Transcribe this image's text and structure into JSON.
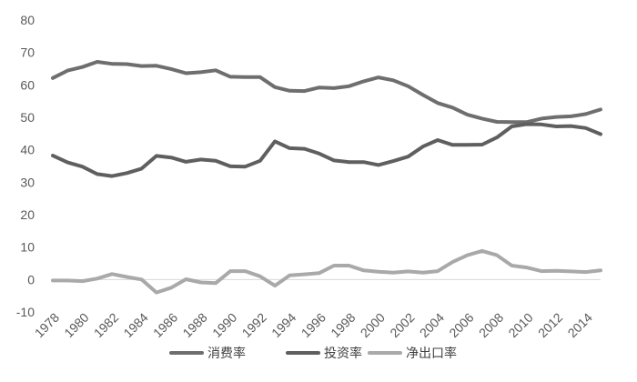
{
  "chart_data": {
    "type": "line",
    "title": "",
    "xlabel": "",
    "ylabel": "",
    "ylim": [
      -10,
      80
    ],
    "yticks": [
      -10,
      0,
      10,
      20,
      30,
      40,
      50,
      60,
      70,
      80
    ],
    "xlim": [
      1978,
      2015
    ],
    "xticks": [
      1978,
      1980,
      1982,
      1984,
      1986,
      1988,
      1990,
      1992,
      1994,
      1996,
      1998,
      2000,
      2002,
      2004,
      2006,
      2008,
      2010,
      2012,
      2014
    ],
    "grid": false,
    "legend_position": "bottom",
    "x": [
      1978,
      1979,
      1980,
      1981,
      1982,
      1983,
      1984,
      1985,
      1986,
      1987,
      1988,
      1989,
      1990,
      1991,
      1992,
      1993,
      1994,
      1995,
      1996,
      1997,
      1998,
      1999,
      2000,
      2001,
      2002,
      2003,
      2004,
      2005,
      2006,
      2007,
      2008,
      2009,
      2010,
      2011,
      2012,
      2013,
      2014,
      2015
    ],
    "series": [
      {
        "name": "消费率",
        "color": "#6e6e6e",
        "values": [
          62.1,
          64.4,
          65.5,
          67.1,
          66.5,
          66.4,
          65.8,
          65.9,
          64.9,
          63.6,
          63.9,
          64.5,
          62.5,
          62.4,
          62.4,
          59.3,
          58.2,
          58.1,
          59.2,
          59.0,
          59.6,
          61.1,
          62.3,
          61.4,
          59.6,
          56.9,
          54.4,
          53.0,
          50.8,
          49.6,
          48.6,
          48.5,
          48.5,
          49.6,
          50.1,
          50.3,
          51.0,
          52.4
        ]
      },
      {
        "name": "投资率",
        "color": "#5f5f5f",
        "values": [
          38.2,
          36.1,
          34.8,
          32.5,
          31.9,
          32.8,
          34.2,
          38.1,
          37.6,
          36.3,
          37.0,
          36.6,
          34.9,
          34.8,
          36.6,
          42.6,
          40.5,
          40.3,
          38.8,
          36.7,
          36.2,
          36.2,
          35.3,
          36.5,
          37.9,
          41.0,
          43.0,
          41.5,
          41.5,
          41.6,
          43.8,
          47.2,
          47.9,
          47.8,
          47.2,
          47.3,
          46.7,
          44.8
        ]
      },
      {
        "name": "净出口率",
        "color": "#a9a9a9",
        "values": [
          -0.3,
          -0.3,
          -0.5,
          0.3,
          1.7,
          0.8,
          0.0,
          -4.0,
          -2.5,
          0.1,
          -0.9,
          -1.1,
          2.6,
          2.6,
          1.0,
          -1.9,
          1.3,
          1.6,
          2.0,
          4.3,
          4.3,
          2.8,
          2.4,
          2.1,
          2.5,
          2.1,
          2.6,
          5.4,
          7.5,
          8.8,
          7.5,
          4.3,
          3.7,
          2.6,
          2.7,
          2.5,
          2.3,
          2.8
        ]
      }
    ]
  }
}
